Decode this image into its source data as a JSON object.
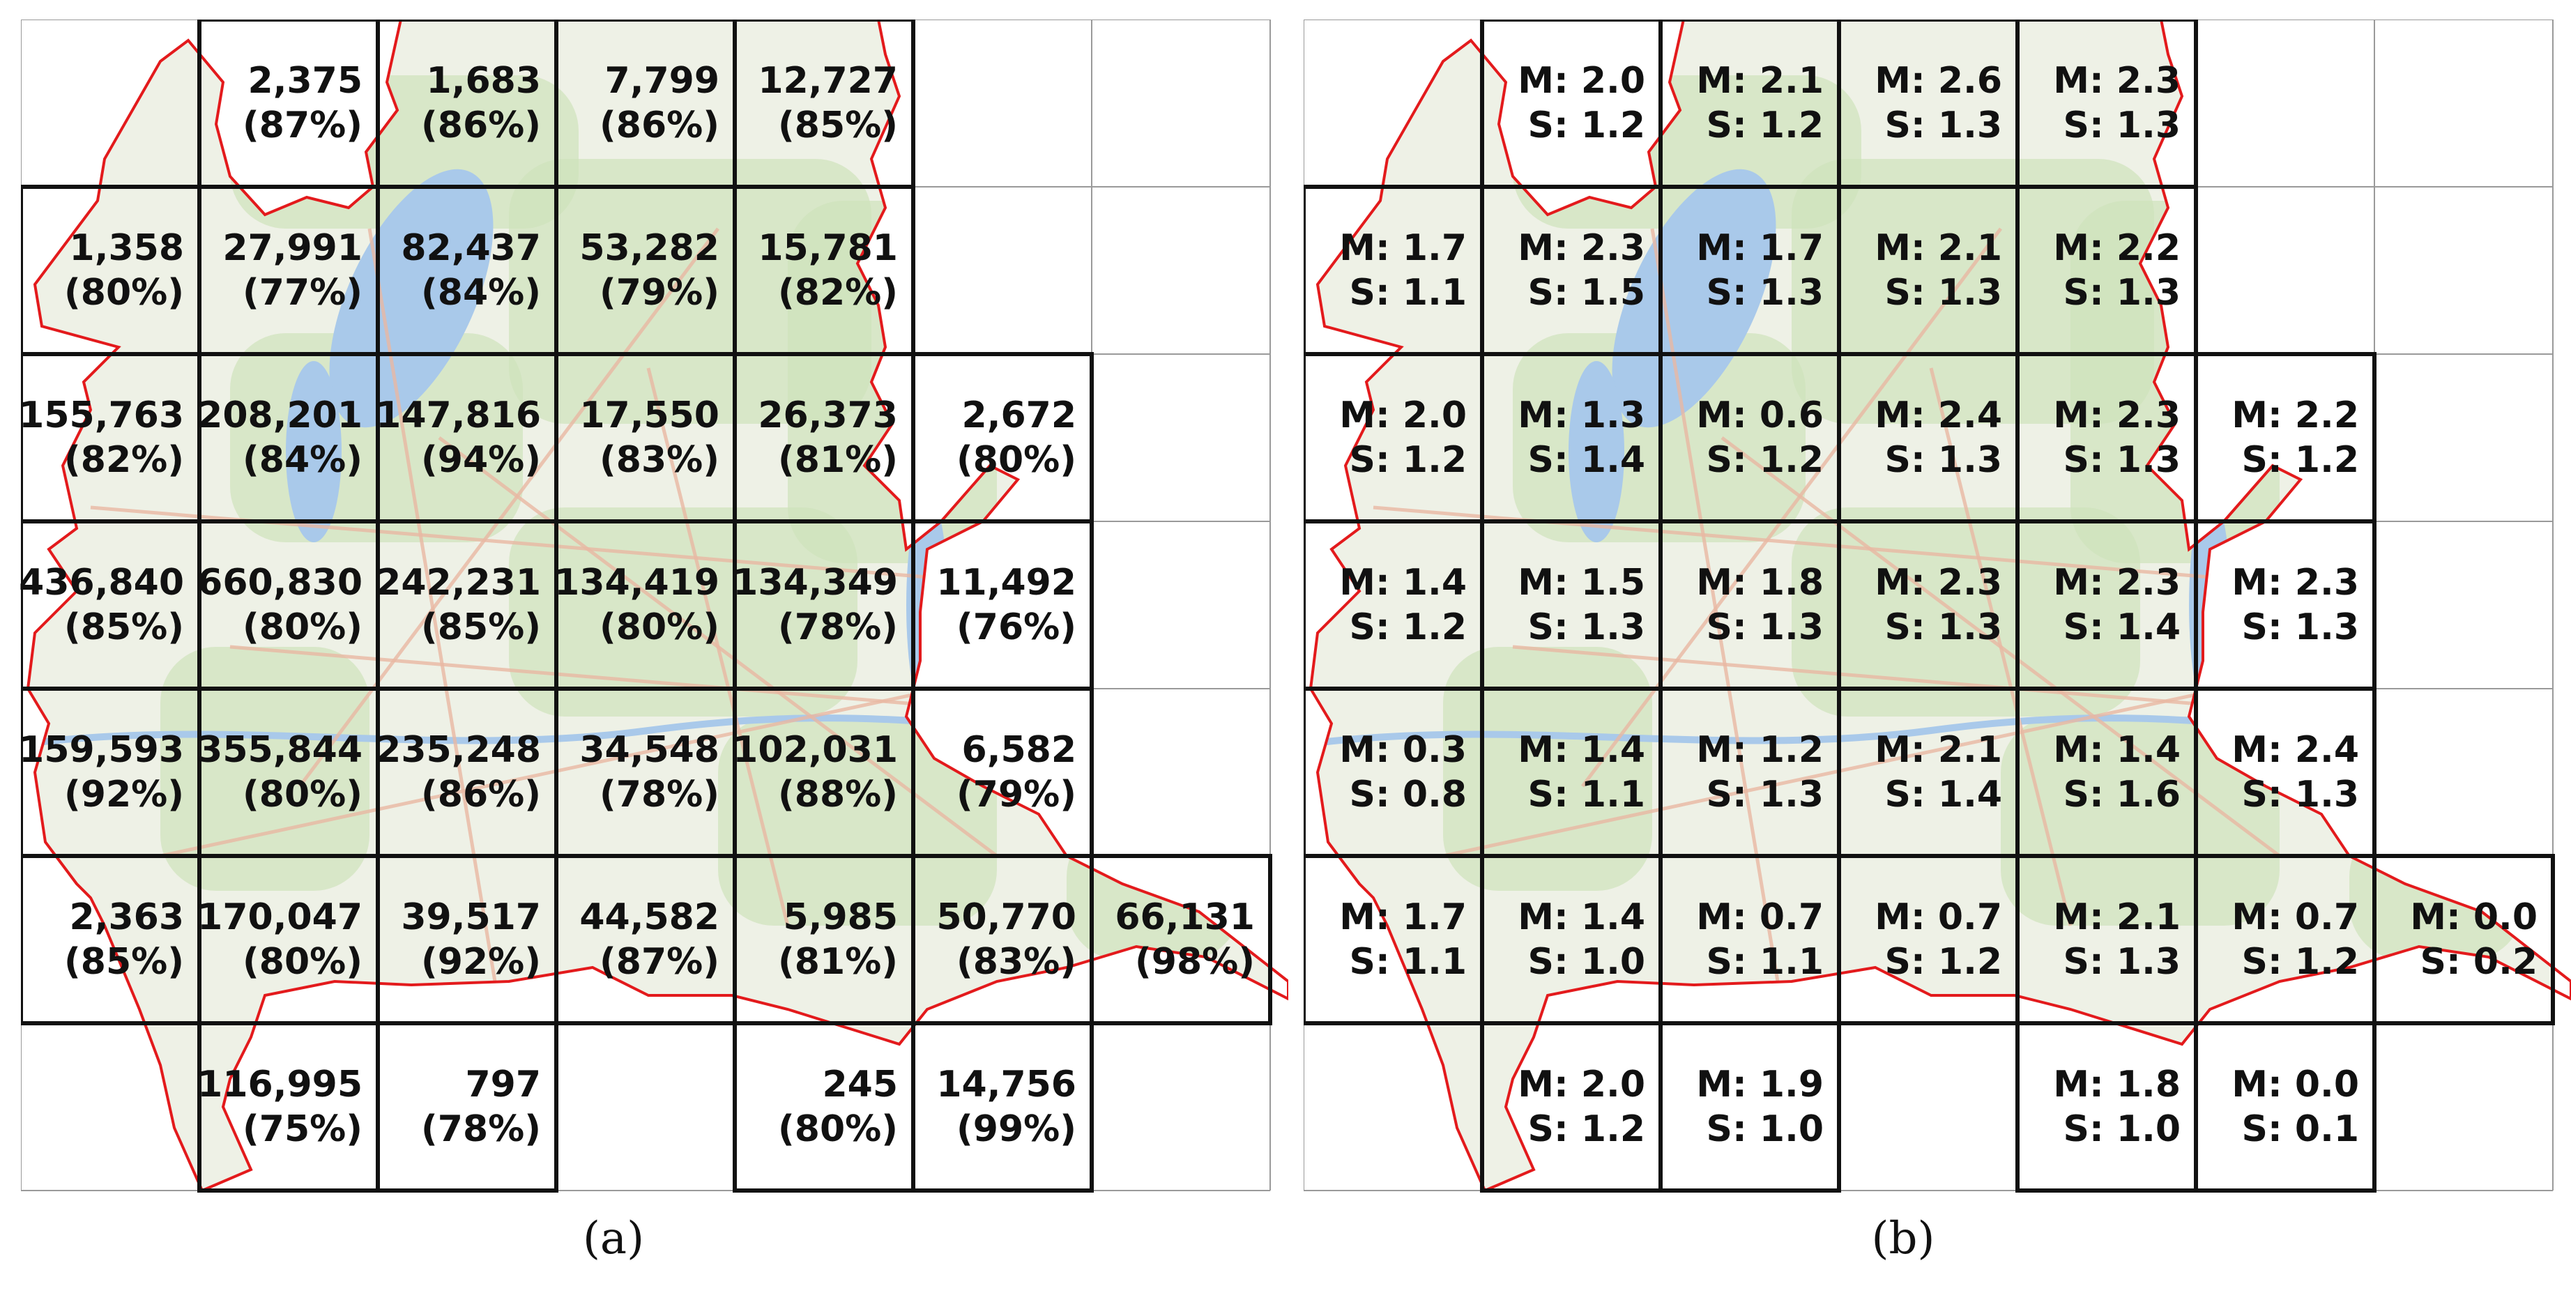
{
  "panels": [
    {
      "id": "a",
      "caption": "(a)",
      "cells": [
        {
          "r": 0,
          "c": 1,
          "l1": "2,375",
          "l2": "(87%)"
        },
        {
          "r": 0,
          "c": 2,
          "l1": "1,683",
          "l2": "(86%)"
        },
        {
          "r": 0,
          "c": 3,
          "l1": "7,799",
          "l2": "(86%)"
        },
        {
          "r": 0,
          "c": 4,
          "l1": "12,727",
          "l2": "(85%)"
        },
        {
          "r": 1,
          "c": 0,
          "l1": "1,358",
          "l2": "(80%)"
        },
        {
          "r": 1,
          "c": 1,
          "l1": "27,991",
          "l2": "(77%)"
        },
        {
          "r": 1,
          "c": 2,
          "l1": "82,437",
          "l2": "(84%)"
        },
        {
          "r": 1,
          "c": 3,
          "l1": "53,282",
          "l2": "(79%)"
        },
        {
          "r": 1,
          "c": 4,
          "l1": "15,781",
          "l2": "(82%)"
        },
        {
          "r": 2,
          "c": 0,
          "l1": "155,763",
          "l2": "(82%)"
        },
        {
          "r": 2,
          "c": 1,
          "l1": "208,201",
          "l2": "(84%)"
        },
        {
          "r": 2,
          "c": 2,
          "l1": "147,816",
          "l2": "(94%)"
        },
        {
          "r": 2,
          "c": 3,
          "l1": "17,550",
          "l2": "(83%)"
        },
        {
          "r": 2,
          "c": 4,
          "l1": "26,373",
          "l2": "(81%)"
        },
        {
          "r": 2,
          "c": 5,
          "l1": "2,672",
          "l2": "(80%)"
        },
        {
          "r": 3,
          "c": 0,
          "l1": "436,840",
          "l2": "(85%)"
        },
        {
          "r": 3,
          "c": 1,
          "l1": "660,830",
          "l2": "(80%)"
        },
        {
          "r": 3,
          "c": 2,
          "l1": "242,231",
          "l2": "(85%)"
        },
        {
          "r": 3,
          "c": 3,
          "l1": "134,419",
          "l2": "(80%)"
        },
        {
          "r": 3,
          "c": 4,
          "l1": "134,349",
          "l2": "(78%)"
        },
        {
          "r": 3,
          "c": 5,
          "l1": "11,492",
          "l2": "(76%)"
        },
        {
          "r": 4,
          "c": 0,
          "l1": "159,593",
          "l2": "(92%)"
        },
        {
          "r": 4,
          "c": 1,
          "l1": "355,844",
          "l2": "(80%)"
        },
        {
          "r": 4,
          "c": 2,
          "l1": "235,248",
          "l2": "(86%)"
        },
        {
          "r": 4,
          "c": 3,
          "l1": "34,548",
          "l2": "(78%)"
        },
        {
          "r": 4,
          "c": 4,
          "l1": "102,031",
          "l2": "(88%)"
        },
        {
          "r": 4,
          "c": 5,
          "l1": "6,582",
          "l2": "(79%)"
        },
        {
          "r": 5,
          "c": 0,
          "l1": "2,363",
          "l2": "(85%)"
        },
        {
          "r": 5,
          "c": 1,
          "l1": "170,047",
          "l2": "(80%)"
        },
        {
          "r": 5,
          "c": 2,
          "l1": "39,517",
          "l2": "(92%)"
        },
        {
          "r": 5,
          "c": 3,
          "l1": "44,582",
          "l2": "(87%)"
        },
        {
          "r": 5,
          "c": 4,
          "l1": "5,985",
          "l2": "(81%)"
        },
        {
          "r": 5,
          "c": 5,
          "l1": "50,770",
          "l2": "(83%)"
        },
        {
          "r": 5,
          "c": 6,
          "l1": "66,131",
          "l2": "(98%)"
        },
        {
          "r": 6,
          "c": 1,
          "l1": "116,995",
          "l2": "(75%)"
        },
        {
          "r": 6,
          "c": 2,
          "l1": "797",
          "l2": "(78%)"
        },
        {
          "r": 6,
          "c": 4,
          "l1": "245",
          "l2": "(80%)"
        },
        {
          "r": 6,
          "c": 5,
          "l1": "14,756",
          "l2": "(99%)"
        }
      ]
    },
    {
      "id": "b",
      "caption": "(b)",
      "cells": [
        {
          "r": 0,
          "c": 1,
          "l1": "M: 2.0",
          "l2": "S: 1.2"
        },
        {
          "r": 0,
          "c": 2,
          "l1": "M: 2.1",
          "l2": "S: 1.2"
        },
        {
          "r": 0,
          "c": 3,
          "l1": "M: 2.6",
          "l2": "S: 1.3"
        },
        {
          "r": 0,
          "c": 4,
          "l1": "M: 2.3",
          "l2": "S: 1.3"
        },
        {
          "r": 1,
          "c": 0,
          "l1": "M: 1.7",
          "l2": "S: 1.1"
        },
        {
          "r": 1,
          "c": 1,
          "l1": "M: 2.3",
          "l2": "S: 1.5"
        },
        {
          "r": 1,
          "c": 2,
          "l1": "M: 1.7",
          "l2": "S: 1.3"
        },
        {
          "r": 1,
          "c": 3,
          "l1": "M: 2.1",
          "l2": "S: 1.3"
        },
        {
          "r": 1,
          "c": 4,
          "l1": "M: 2.2",
          "l2": "S: 1.3"
        },
        {
          "r": 2,
          "c": 0,
          "l1": "M: 2.0",
          "l2": "S: 1.2"
        },
        {
          "r": 2,
          "c": 1,
          "l1": "M: 1.3",
          "l2": "S: 1.4"
        },
        {
          "r": 2,
          "c": 2,
          "l1": "M: 0.6",
          "l2": "S: 1.2"
        },
        {
          "r": 2,
          "c": 3,
          "l1": "M: 2.4",
          "l2": "S: 1.3"
        },
        {
          "r": 2,
          "c": 4,
          "l1": "M: 2.3",
          "l2": "S: 1.3"
        },
        {
          "r": 2,
          "c": 5,
          "l1": "M: 2.2",
          "l2": "S: 1.2"
        },
        {
          "r": 3,
          "c": 0,
          "l1": "M: 1.4",
          "l2": "S: 1.2"
        },
        {
          "r": 3,
          "c": 1,
          "l1": "M: 1.5",
          "l2": "S: 1.3"
        },
        {
          "r": 3,
          "c": 2,
          "l1": "M: 1.8",
          "l2": "S: 1.3"
        },
        {
          "r": 3,
          "c": 3,
          "l1": "M: 2.3",
          "l2": "S: 1.3"
        },
        {
          "r": 3,
          "c": 4,
          "l1": "M: 2.3",
          "l2": "S: 1.4"
        },
        {
          "r": 3,
          "c": 5,
          "l1": "M: 2.3",
          "l2": "S: 1.3"
        },
        {
          "r": 4,
          "c": 0,
          "l1": "M: 0.3",
          "l2": "S: 0.8"
        },
        {
          "r": 4,
          "c": 1,
          "l1": "M: 1.4",
          "l2": "S: 1.1"
        },
        {
          "r": 4,
          "c": 2,
          "l1": "M: 1.2",
          "l2": "S: 1.3"
        },
        {
          "r": 4,
          "c": 3,
          "l1": "M: 2.1",
          "l2": "S: 1.4"
        },
        {
          "r": 4,
          "c": 4,
          "l1": "M: 1.4",
          "l2": "S: 1.6"
        },
        {
          "r": 4,
          "c": 5,
          "l1": "M: 2.4",
          "l2": "S: 1.3"
        },
        {
          "r": 5,
          "c": 0,
          "l1": "M: 1.7",
          "l2": "S: 1.1"
        },
        {
          "r": 5,
          "c": 1,
          "l1": "M: 1.4",
          "l2": "S: 1.0"
        },
        {
          "r": 5,
          "c": 2,
          "l1": "M: 0.7",
          "l2": "S: 1.1"
        },
        {
          "r": 5,
          "c": 3,
          "l1": "M: 0.7",
          "l2": "S: 1.2"
        },
        {
          "r": 5,
          "c": 4,
          "l1": "M: 2.1",
          "l2": "S: 1.3"
        },
        {
          "r": 5,
          "c": 5,
          "l1": "M: 0.7",
          "l2": "S: 1.2"
        },
        {
          "r": 5,
          "c": 6,
          "l1": "M: 0.0",
          "l2": "S: 0.2"
        },
        {
          "r": 6,
          "c": 1,
          "l1": "M: 2.0",
          "l2": "S: 1.2"
        },
        {
          "r": 6,
          "c": 2,
          "l1": "M: 1.9",
          "l2": "S: 1.0"
        },
        {
          "r": 6,
          "c": 4,
          "l1": "M: 1.8",
          "l2": "S: 1.0"
        },
        {
          "r": 6,
          "c": 5,
          "l1": "M: 0.0",
          "l2": "S: 0.1"
        }
      ]
    }
  ],
  "colors": {
    "map_base": "#eef1e6",
    "map_green": "#cfe3bb",
    "water": "#a9c9ea",
    "road": "#e9b8a2",
    "border": "#e31a1c",
    "thin_grid": "#9a9a9a",
    "thick_grid": "#111111"
  }
}
